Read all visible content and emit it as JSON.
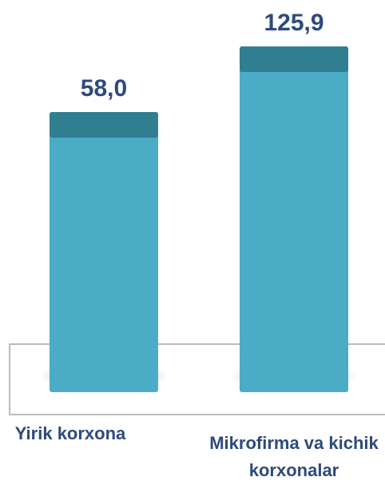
{
  "chart_data": {
    "type": "bar",
    "categories": [
      "Yirik korxona",
      "Mikrofirma va kichik korxonalar"
    ],
    "values": [
      58.0,
      125.9
    ],
    "value_labels": [
      "58,0",
      "125,9"
    ],
    "color": "#4bacc6",
    "ylim": [
      -232,
      140
    ]
  }
}
